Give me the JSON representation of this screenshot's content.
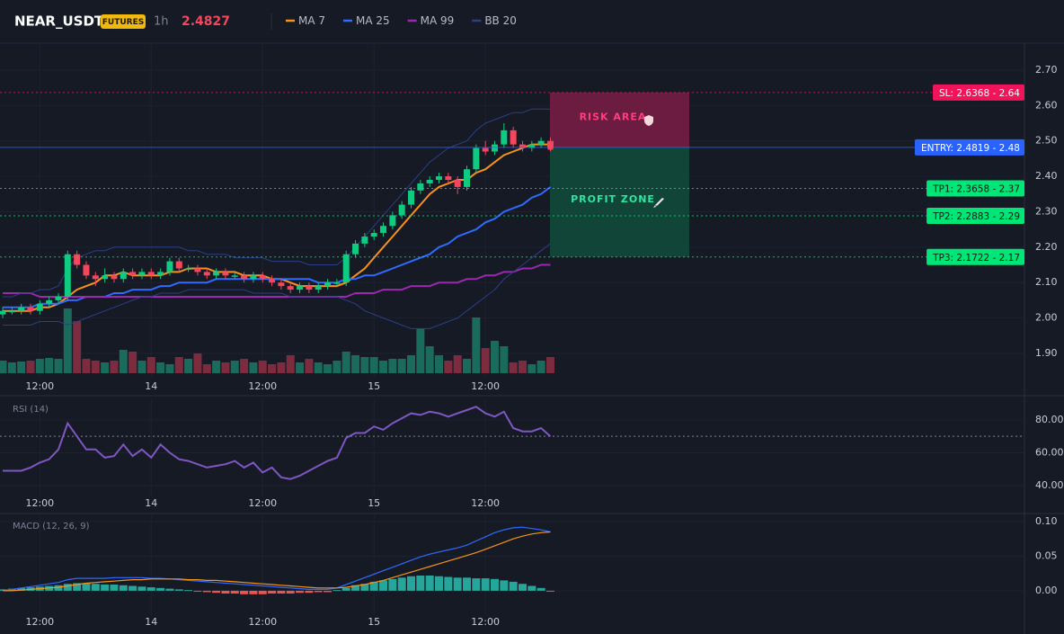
{
  "header": {
    "symbol": "NEAR_USDT",
    "badge": "FUTURES",
    "interval": "1h",
    "price": 2.4827
  },
  "chart_data": [
    {
      "type": "candlestick",
      "categories": [
        null,
        null,
        null,
        null,
        "12:00",
        null,
        null,
        null,
        null,
        null,
        null,
        null,
        null,
        null,
        null,
        null,
        "14",
        null,
        null,
        null,
        null,
        null,
        null,
        null,
        null,
        null,
        null,
        null,
        "12:00",
        null,
        null,
        null,
        null,
        null,
        null,
        null,
        null,
        null,
        null,
        null,
        "15",
        null,
        null,
        null,
        null,
        null,
        null,
        null,
        null,
        null,
        null,
        null,
        "12:00",
        null,
        null,
        null,
        null,
        null,
        null,
        null
      ],
      "open": [
        2.01,
        2.02,
        2.02,
        2.03,
        2.02,
        2.04,
        2.05,
        2.06,
        2.18,
        2.15,
        2.12,
        2.11,
        2.12,
        2.11,
        2.13,
        2.12,
        2.13,
        2.12,
        2.13,
        2.16,
        2.14,
        2.14,
        2.13,
        2.12,
        2.13,
        2.12,
        2.12,
        2.11,
        2.12,
        2.11,
        2.1,
        2.09,
        2.08,
        2.09,
        2.08,
        2.09,
        2.1,
        2.1,
        2.18,
        2.21,
        2.23,
        2.24,
        2.26,
        2.29,
        2.32,
        2.36,
        2.38,
        2.39,
        2.4,
        2.39,
        2.37,
        2.42,
        2.48,
        2.47,
        2.49,
        2.53,
        2.49,
        2.48,
        2.49,
        2.5
      ],
      "high": [
        2.03,
        2.03,
        2.04,
        2.04,
        2.05,
        2.06,
        2.07,
        2.19,
        2.19,
        2.16,
        2.13,
        2.14,
        2.13,
        2.14,
        2.14,
        2.14,
        2.14,
        2.14,
        2.17,
        2.17,
        2.15,
        2.15,
        2.14,
        2.14,
        2.14,
        2.13,
        2.13,
        2.13,
        2.13,
        2.12,
        2.11,
        2.1,
        2.1,
        2.1,
        2.1,
        2.11,
        2.11,
        2.19,
        2.22,
        2.24,
        2.25,
        2.27,
        2.3,
        2.33,
        2.37,
        2.39,
        2.4,
        2.41,
        2.41,
        2.4,
        2.43,
        2.49,
        2.5,
        2.5,
        2.55,
        2.54,
        2.5,
        2.5,
        2.51,
        2.51
      ],
      "low": [
        2.0,
        2.01,
        2.01,
        2.01,
        2.01,
        2.03,
        2.04,
        2.05,
        2.14,
        2.11,
        2.09,
        2.1,
        2.1,
        2.1,
        2.11,
        2.11,
        2.11,
        2.11,
        2.12,
        2.13,
        2.13,
        2.12,
        2.11,
        2.11,
        2.11,
        2.11,
        2.1,
        2.1,
        2.1,
        2.09,
        2.08,
        2.07,
        2.07,
        2.07,
        2.07,
        2.08,
        2.09,
        2.09,
        2.17,
        2.2,
        2.22,
        2.23,
        2.25,
        2.28,
        2.31,
        2.35,
        2.37,
        2.38,
        2.38,
        2.35,
        2.36,
        2.41,
        2.46,
        2.46,
        2.48,
        2.48,
        2.47,
        2.47,
        2.48,
        2.47
      ],
      "close": [
        2.02,
        2.02,
        2.03,
        2.02,
        2.04,
        2.05,
        2.06,
        2.18,
        2.15,
        2.12,
        2.11,
        2.12,
        2.11,
        2.13,
        2.12,
        2.13,
        2.12,
        2.13,
        2.16,
        2.14,
        2.14,
        2.13,
        2.12,
        2.13,
        2.12,
        2.12,
        2.11,
        2.12,
        2.11,
        2.1,
        2.09,
        2.08,
        2.09,
        2.08,
        2.09,
        2.1,
        2.1,
        2.18,
        2.21,
        2.23,
        2.24,
        2.26,
        2.29,
        2.32,
        2.36,
        2.38,
        2.39,
        2.4,
        2.39,
        2.37,
        2.42,
        2.48,
        2.47,
        2.49,
        2.53,
        2.49,
        2.48,
        2.49,
        2.5,
        2.48
      ],
      "volume": [
        14,
        12,
        13,
        14,
        16,
        17,
        16,
        72,
        58,
        16,
        14,
        12,
        14,
        26,
        24,
        14,
        18,
        12,
        10,
        18,
        16,
        22,
        10,
        14,
        12,
        14,
        16,
        12,
        14,
        10,
        12,
        20,
        12,
        16,
        12,
        10,
        14,
        24,
        20,
        18,
        18,
        14,
        16,
        16,
        20,
        50,
        30,
        20,
        14,
        20,
        16,
        62,
        28,
        36,
        30,
        12,
        14,
        10,
        14,
        18
      ],
      "up_color": "#0ecb81",
      "down_color": "#f6465d",
      "volume_up_color": "#1a6b5c",
      "volume_down_color": "#7d2c40",
      "series": [
        {
          "name": "MA 7",
          "color": "#f7931a",
          "values": [
            2.02,
            2.02,
            2.02,
            2.02,
            2.03,
            2.03,
            2.04,
            2.06,
            2.08,
            2.09,
            2.1,
            2.12,
            2.12,
            2.13,
            2.12,
            2.12,
            2.12,
            2.12,
            2.13,
            2.13,
            2.14,
            2.14,
            2.14,
            2.13,
            2.13,
            2.13,
            2.12,
            2.12,
            2.12,
            2.11,
            2.11,
            2.1,
            2.09,
            2.09,
            2.09,
            2.09,
            2.09,
            2.1,
            2.12,
            2.14,
            2.17,
            2.2,
            2.23,
            2.26,
            2.29,
            2.32,
            2.35,
            2.37,
            2.38,
            2.39,
            2.39,
            2.41,
            2.42,
            2.44,
            2.46,
            2.47,
            2.48,
            2.49,
            2.49,
            2.49
          ]
        },
        {
          "name": "MA 25",
          "color": "#2f6bff",
          "values": [
            2.03,
            2.03,
            2.03,
            2.03,
            2.04,
            2.04,
            2.04,
            2.05,
            2.05,
            2.06,
            2.06,
            2.06,
            2.07,
            2.07,
            2.08,
            2.08,
            2.08,
            2.09,
            2.09,
            2.1,
            2.1,
            2.1,
            2.1,
            2.11,
            2.11,
            2.11,
            2.11,
            2.11,
            2.11,
            2.11,
            2.11,
            2.11,
            2.11,
            2.11,
            2.1,
            2.1,
            2.1,
            2.11,
            2.11,
            2.12,
            2.12,
            2.13,
            2.14,
            2.15,
            2.16,
            2.17,
            2.18,
            2.2,
            2.21,
            2.23,
            2.24,
            2.25,
            2.27,
            2.28,
            2.3,
            2.31,
            2.32,
            2.34,
            2.35,
            2.37
          ]
        },
        {
          "name": "MA 99",
          "color": "#9c27b0",
          "values": [
            2.07,
            2.07,
            2.07,
            2.07,
            2.06,
            2.06,
            2.06,
            2.06,
            2.06,
            2.06,
            2.06,
            2.06,
            2.06,
            2.06,
            2.06,
            2.06,
            2.06,
            2.06,
            2.06,
            2.06,
            2.06,
            2.06,
            2.06,
            2.06,
            2.06,
            2.06,
            2.06,
            2.06,
            2.06,
            2.06,
            2.06,
            2.06,
            2.06,
            2.06,
            2.06,
            2.06,
            2.06,
            2.06,
            2.07,
            2.07,
            2.07,
            2.08,
            2.08,
            2.08,
            2.09,
            2.09,
            2.09,
            2.1,
            2.1,
            2.1,
            2.11,
            2.11,
            2.12,
            2.12,
            2.13,
            2.13,
            2.14,
            2.14,
            2.15,
            2.15
          ]
        },
        {
          "name": "BB 20",
          "color": "#2a3f85",
          "upper": [
            2.06,
            2.06,
            2.07,
            2.07,
            2.08,
            2.08,
            2.09,
            2.14,
            2.17,
            2.18,
            2.19,
            2.19,
            2.2,
            2.2,
            2.2,
            2.2,
            2.2,
            2.2,
            2.2,
            2.2,
            2.19,
            2.19,
            2.18,
            2.18,
            2.18,
            2.17,
            2.17,
            2.17,
            2.17,
            2.16,
            2.16,
            2.16,
            2.16,
            2.15,
            2.15,
            2.15,
            2.15,
            2.17,
            2.2,
            2.23,
            2.26,
            2.29,
            2.32,
            2.35,
            2.38,
            2.41,
            2.44,
            2.46,
            2.48,
            2.49,
            2.5,
            2.53,
            2.55,
            2.56,
            2.57,
            2.58,
            2.58,
            2.59,
            2.59,
            2.59
          ],
          "lower": [
            1.98,
            1.98,
            1.98,
            1.98,
            1.99,
            1.99,
            1.99,
            1.98,
            1.99,
            2.0,
            2.01,
            2.02,
            2.03,
            2.04,
            2.05,
            2.06,
            2.06,
            2.07,
            2.07,
            2.07,
            2.08,
            2.08,
            2.08,
            2.08,
            2.08,
            2.08,
            2.08,
            2.07,
            2.07,
            2.07,
            2.07,
            2.06,
            2.06,
            2.06,
            2.06,
            2.06,
            2.06,
            2.05,
            2.04,
            2.02,
            2.01,
            2.0,
            1.99,
            1.98,
            1.97,
            1.97,
            1.97,
            1.98,
            1.99,
            2.0,
            2.02,
            2.04,
            2.06,
            2.08,
            2.11,
            2.13,
            2.15,
            2.17,
            2.19,
            2.21
          ]
        }
      ],
      "ylim": [
        1.844,
        2.771
      ],
      "yticks": [
        {
          "value": 1.9,
          "label": "1.90"
        },
        {
          "value": 2.0,
          "label": "2.00"
        },
        {
          "value": 2.1,
          "label": "2.10"
        },
        {
          "value": 2.2,
          "label": "2.20"
        },
        {
          "value": 2.3,
          "label": "2.30"
        },
        {
          "value": 2.4,
          "label": "2.40"
        },
        {
          "value": 2.5,
          "label": "2.50"
        },
        {
          "value": 2.6,
          "label": "2.60"
        },
        {
          "value": 2.7,
          "label": "2.70"
        }
      ],
      "zones": [
        {
          "label": "RISK AREA",
          "from": 2.4819,
          "to": 2.6368,
          "color": "#7a1d45",
          "text_color": "#ff3d7f"
        },
        {
          "label": "PROFIT ZONE",
          "from": 2.1722,
          "to": 2.4819,
          "color": "#0f4d3c",
          "text_color": "#2ee6a0"
        }
      ],
      "levels": [
        {
          "label": "SL: 2.6368 - 2.64",
          "value": 2.6368,
          "color": "#f0145a",
          "text_color": "#ffffff",
          "style": "dotted"
        },
        {
          "label": "ENTRY: 2.4819 - 2.48",
          "value": 2.4819,
          "color": "#2962ff",
          "text_color": "#ffffff",
          "style": "solid"
        },
        {
          "label": "TP1: 2.3658 - 2.37",
          "value": 2.3658,
          "color": "#00e676",
          "text_color": "#0b1a12",
          "style": "dotted"
        },
        {
          "label": "TP2: 2.2883 - 2.29",
          "value": 2.2883,
          "color": "#00e676",
          "text_color": "#0b1a12",
          "style": "dotted"
        },
        {
          "label": "TP3: 2.1722 - 2.17",
          "value": 2.1722,
          "color": "#00e676",
          "text_color": "#0b1a12",
          "style": "dotted"
        }
      ]
    },
    {
      "type": "line",
      "title": "RSI (14)",
      "color": "#7e57c2",
      "values": [
        49,
        49,
        49,
        51,
        54,
        56,
        62,
        78,
        70,
        62,
        62,
        57,
        58,
        65,
        58,
        62,
        57,
        65,
        60,
        56,
        55,
        53,
        51,
        52,
        53,
        55,
        51,
        54,
        48,
        51,
        45,
        44,
        46,
        49,
        52,
        55,
        57,
        69,
        72,
        72,
        76,
        74,
        78,
        81,
        84,
        83,
        85,
        84,
        82,
        84,
        86,
        88,
        84,
        82,
        85,
        75,
        73,
        73,
        75,
        70
      ],
      "ylim": [
        35.6,
        92
      ],
      "yticks": [
        {
          "value": 40,
          "label": "40.00"
        },
        {
          "value": 60,
          "label": "60.00"
        },
        {
          "value": 80,
          "label": "80.00"
        }
      ],
      "hline": 70
    },
    {
      "type": "macd",
      "title": "MACD (12, 26, 9)",
      "macd_color": "#2f6bff",
      "signal_color": "#f7931a",
      "hist_up_color": "#26a69a",
      "hist_down_color": "#ef5350",
      "macd": [
        0.0,
        0.002,
        0.004,
        0.006,
        0.008,
        0.01,
        0.012,
        0.016,
        0.018,
        0.018,
        0.018,
        0.018,
        0.019,
        0.019,
        0.019,
        0.019,
        0.018,
        0.018,
        0.017,
        0.016,
        0.015,
        0.014,
        0.013,
        0.012,
        0.011,
        0.01,
        0.009,
        0.008,
        0.007,
        0.006,
        0.005,
        0.004,
        0.003,
        0.002,
        0.002,
        0.002,
        0.004,
        0.009,
        0.014,
        0.019,
        0.024,
        0.029,
        0.034,
        0.039,
        0.044,
        0.049,
        0.053,
        0.056,
        0.059,
        0.062,
        0.066,
        0.072,
        0.078,
        0.084,
        0.088,
        0.091,
        0.092,
        0.09,
        0.088,
        0.085
      ],
      "signal": [
        0.0,
        0.0,
        0.001,
        0.002,
        0.003,
        0.004,
        0.005,
        0.007,
        0.009,
        0.011,
        0.012,
        0.013,
        0.014,
        0.015,
        0.016,
        0.016,
        0.017,
        0.017,
        0.017,
        0.017,
        0.016,
        0.016,
        0.015,
        0.015,
        0.014,
        0.013,
        0.012,
        0.011,
        0.01,
        0.009,
        0.008,
        0.007,
        0.006,
        0.005,
        0.004,
        0.004,
        0.004,
        0.005,
        0.007,
        0.009,
        0.012,
        0.015,
        0.019,
        0.023,
        0.027,
        0.031,
        0.035,
        0.039,
        0.043,
        0.047,
        0.051,
        0.055,
        0.06,
        0.065,
        0.07,
        0.075,
        0.079,
        0.082,
        0.084,
        0.085
      ],
      "histogram": [
        0.002,
        0.003,
        0.004,
        0.005,
        0.006,
        0.007,
        0.008,
        0.01,
        0.011,
        0.011,
        0.01,
        0.009,
        0.009,
        0.008,
        0.007,
        0.006,
        0.005,
        0.004,
        0.003,
        0.002,
        0.001,
        -0.001,
        -0.002,
        -0.003,
        -0.004,
        -0.004,
        -0.005,
        -0.005,
        -0.005,
        -0.004,
        -0.004,
        -0.004,
        -0.003,
        -0.003,
        -0.002,
        -0.002,
        0.001,
        0.004,
        0.008,
        0.01,
        0.013,
        0.015,
        0.017,
        0.019,
        0.021,
        0.022,
        0.022,
        0.021,
        0.02,
        0.019,
        0.019,
        0.018,
        0.018,
        0.017,
        0.015,
        0.013,
        0.01,
        0.007,
        0.004,
        -0.001
      ],
      "ylim": [
        -0.03,
        0.1065
      ],
      "yticks": [
        {
          "value": 0,
          "label": "0.00"
        },
        {
          "value": 0.05,
          "label": "0.05"
        },
        {
          "value": 0.1,
          "label": "0.10"
        }
      ]
    }
  ]
}
